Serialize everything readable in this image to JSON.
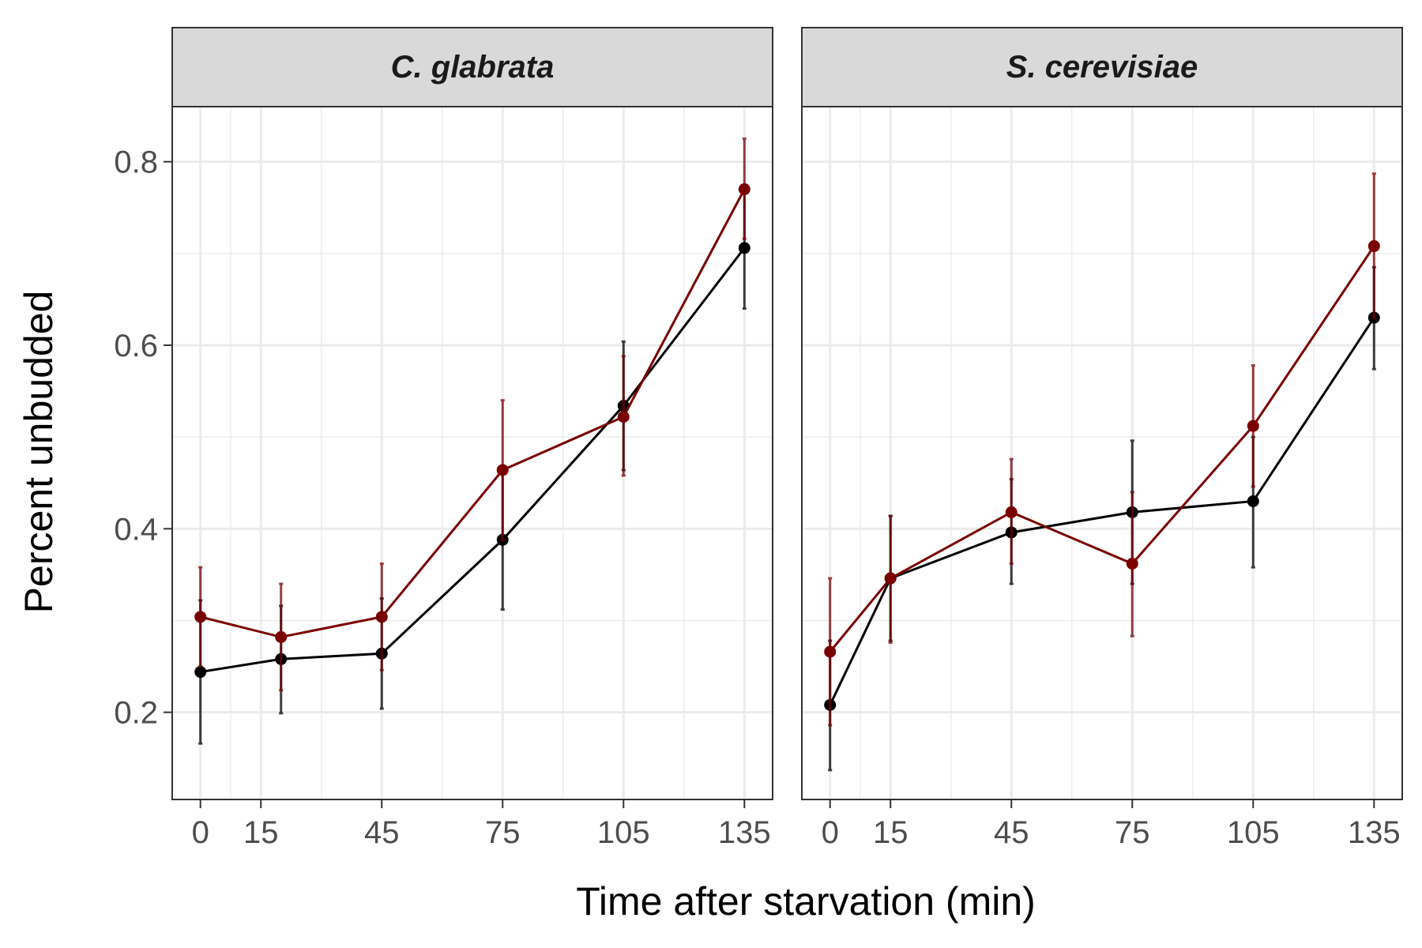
{
  "chart_data": {
    "type": "line",
    "xlabel": "Time after starvation (min)",
    "ylabel": "Percent unbudded",
    "x_ticks": [
      0,
      15,
      45,
      75,
      105,
      135
    ],
    "x_tick_labels": [
      "0",
      "15",
      "45",
      "75",
      "105",
      "135"
    ],
    "y_ticks": [
      0.2,
      0.4,
      0.6,
      0.8
    ],
    "y_tick_labels": [
      "0.2",
      "0.4",
      "0.6",
      "0.8"
    ],
    "xlim": [
      -7,
      142
    ],
    "ylim": [
      0.105,
      0.86
    ],
    "grid": true,
    "legend": "none",
    "colors": {
      "black_series": "#000000",
      "red_series": "#7a0000",
      "strip_fill": "#d9d9d9",
      "grid": "#ebebeb"
    },
    "panels": [
      {
        "title": "C. glabrata",
        "series": [
          {
            "color": "#000000",
            "x": [
              0,
              20,
              45,
              75,
              105,
              135
            ],
            "y": [
              0.244,
              0.258,
              0.264,
              0.388,
              0.534,
              0.706
            ],
            "ymin": [
              0.166,
              0.199,
              0.204,
              0.312,
              0.464,
              0.64
            ],
            "ymax": [
              0.322,
              0.316,
              0.324,
              0.464,
              0.604,
              0.772
            ]
          },
          {
            "color": "#7a0000",
            "x": [
              0,
              20,
              45,
              75,
              105,
              135
            ],
            "y": [
              0.304,
              0.282,
              0.304,
              0.464,
              0.522,
              0.77
            ],
            "ymin": [
              0.25,
              0.224,
              0.246,
              0.388,
              0.458,
              0.716
            ],
            "ymax": [
              0.358,
              0.34,
              0.362,
              0.54,
              0.588,
              0.825
            ]
          }
        ]
      },
      {
        "title": "S. cerevisiae",
        "series": [
          {
            "color": "#000000",
            "x": [
              0,
              15,
              45,
              75,
              105,
              135
            ],
            "y": [
              0.208,
              0.346,
              0.396,
              0.418,
              0.43,
              0.63
            ],
            "ymin": [
              0.137,
              0.278,
              0.34,
              0.34,
              0.358,
              0.574
            ],
            "ymax": [
              0.278,
              0.414,
              0.454,
              0.496,
              0.5,
              0.685
            ]
          },
          {
            "color": "#7a0000",
            "x": [
              0,
              15,
              45,
              75,
              105,
              135
            ],
            "y": [
              0.266,
              0.346,
              0.418,
              0.362,
              0.512,
              0.708
            ],
            "ymin": [
              0.186,
              0.276,
              0.362,
              0.283,
              0.446,
              0.63
            ],
            "ymax": [
              0.346,
              0.414,
              0.476,
              0.44,
              0.578,
              0.787
            ]
          }
        ]
      }
    ]
  }
}
